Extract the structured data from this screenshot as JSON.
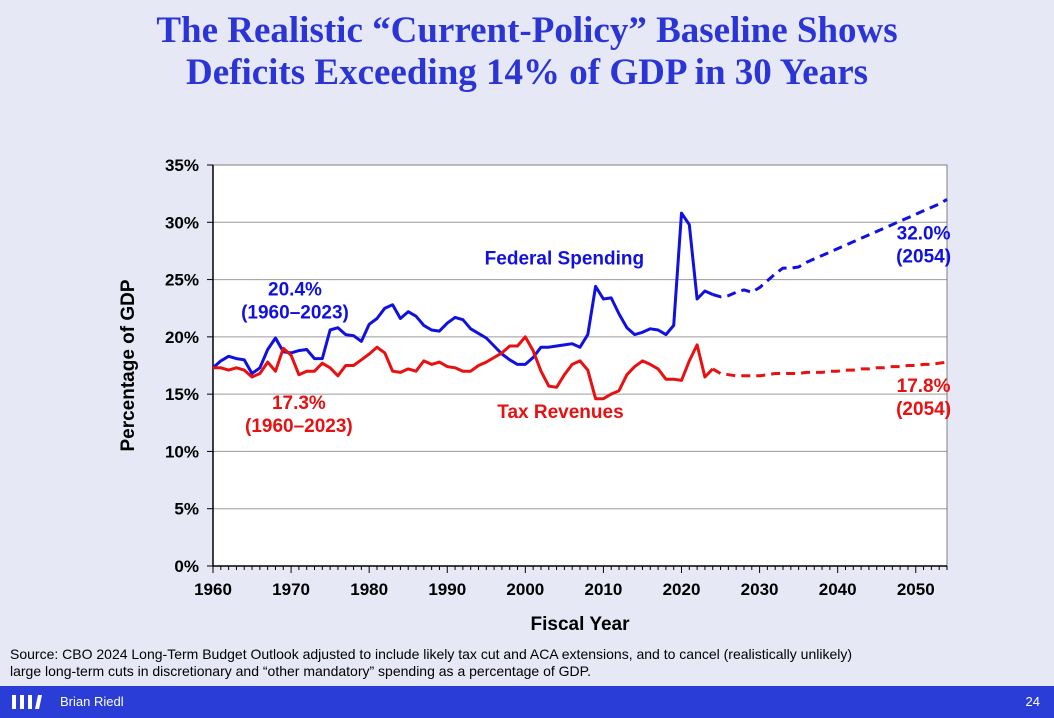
{
  "slide": {
    "title_line1": "The Realistic “Current-Policy” Baseline Shows",
    "title_line2": "Deficits Exceeding 14% of GDP in 30 Years",
    "source_line1": "Source: CBO 2024 Long-Term Budget Outlook adjusted to include likely tax cut and ACA extensions, and to cancel (realistically unlikely)",
    "source_line2": "large long-term cuts in discretionary and “other mandatory” spending as a percentage of GDP.",
    "author": "Brian Riedl",
    "page_number": "24"
  },
  "colors": {
    "title": "#2b35d6",
    "spending": "#1010e0",
    "revenues": "#e81010",
    "footer_bar": "#2a3dd6",
    "background": "#e6e8f5"
  },
  "chart_data": {
    "type": "line",
    "xlabel": "Fiscal Year",
    "ylabel": "Percentage of GDP",
    "xlim": [
      1960,
      2054
    ],
    "ylim": [
      0,
      35
    ],
    "x_ticks": [
      1960,
      1970,
      1980,
      1990,
      2000,
      2010,
      2020,
      2030,
      2040,
      2050
    ],
    "y_ticks": [
      0,
      5,
      10,
      15,
      20,
      25,
      30,
      35
    ],
    "y_tick_labels": [
      "0%",
      "5%",
      "10%",
      "15%",
      "20%",
      "25%",
      "30%",
      "35%"
    ],
    "grid": true,
    "series": [
      {
        "name": "Federal Spending",
        "color": "#1010e0",
        "x": [
          1960,
          1961,
          1962,
          1963,
          1964,
          1965,
          1966,
          1967,
          1968,
          1969,
          1970,
          1971,
          1972,
          1973,
          1974,
          1975,
          1976,
          1977,
          1978,
          1979,
          1980,
          1981,
          1982,
          1983,
          1984,
          1985,
          1986,
          1987,
          1988,
          1989,
          1990,
          1991,
          1992,
          1993,
          1994,
          1995,
          1996,
          1997,
          1998,
          1999,
          2000,
          2001,
          2002,
          2003,
          2004,
          2005,
          2006,
          2007,
          2008,
          2009,
          2010,
          2011,
          2012,
          2013,
          2014,
          2015,
          2016,
          2017,
          2018,
          2019,
          2020,
          2021,
          2022,
          2023,
          2024
        ],
        "y": [
          17.3,
          17.9,
          18.3,
          18.1,
          18.0,
          16.8,
          17.3,
          18.9,
          19.9,
          18.7,
          18.6,
          18.8,
          18.9,
          18.1,
          18.1,
          20.6,
          20.8,
          20.2,
          20.1,
          19.6,
          21.1,
          21.6,
          22.5,
          22.8,
          21.6,
          22.2,
          21.8,
          21.0,
          20.6,
          20.5,
          21.2,
          21.7,
          21.5,
          20.7,
          20.3,
          19.9,
          19.2,
          18.5,
          18.0,
          17.6,
          17.6,
          18.2,
          19.1,
          19.1,
          19.2,
          19.3,
          19.4,
          19.1,
          20.2,
          24.4,
          23.3,
          23.4,
          22.0,
          20.8,
          20.2,
          20.4,
          20.7,
          20.6,
          20.2,
          21.0,
          30.8,
          29.8,
          23.3,
          24.0,
          23.7
        ]
      },
      {
        "name": "Tax Revenues",
        "color": "#e81010",
        "x": [
          1960,
          1961,
          1962,
          1963,
          1964,
          1965,
          1966,
          1967,
          1968,
          1969,
          1970,
          1971,
          1972,
          1973,
          1974,
          1975,
          1976,
          1977,
          1978,
          1979,
          1980,
          1981,
          1982,
          1983,
          1984,
          1985,
          1986,
          1987,
          1988,
          1989,
          1990,
          1991,
          1992,
          1993,
          1994,
          1995,
          1996,
          1997,
          1998,
          1999,
          2000,
          2001,
          2002,
          2003,
          2004,
          2005,
          2006,
          2007,
          2008,
          2009,
          2010,
          2011,
          2012,
          2013,
          2014,
          2015,
          2016,
          2017,
          2018,
          2019,
          2020,
          2021,
          2022,
          2023,
          2024
        ],
        "y": [
          17.3,
          17.3,
          17.1,
          17.3,
          17.1,
          16.5,
          16.8,
          17.8,
          17.0,
          19.0,
          18.4,
          16.7,
          17.0,
          17.0,
          17.7,
          17.3,
          16.6,
          17.5,
          17.5,
          18.0,
          18.5,
          19.1,
          18.6,
          17.0,
          16.9,
          17.2,
          17.0,
          17.9,
          17.6,
          17.8,
          17.4,
          17.3,
          17.0,
          17.0,
          17.5,
          17.8,
          18.2,
          18.6,
          19.2,
          19.2,
          20.0,
          18.8,
          17.0,
          15.7,
          15.6,
          16.7,
          17.6,
          17.9,
          17.1,
          14.6,
          14.6,
          15.0,
          15.3,
          16.7,
          17.4,
          17.9,
          17.6,
          17.2,
          16.3,
          16.3,
          16.2,
          17.9,
          19.3,
          16.5,
          17.2
        ]
      },
      {
        "name": "",
        "color": "#1010e0",
        "dashed": true,
        "x": [
          2024,
          2025,
          2026,
          2027,
          2028,
          2029,
          2030,
          2031,
          2032,
          2033,
          2034,
          2035,
          2036,
          2037,
          2038,
          2039,
          2040,
          2041,
          2042,
          2043,
          2044,
          2045,
          2046,
          2047,
          2048,
          2049,
          2050,
          2051,
          2052,
          2053,
          2054
        ],
        "y": [
          23.7,
          23.5,
          23.6,
          23.9,
          24.1,
          23.9,
          24.3,
          24.9,
          25.5,
          26.0,
          26.0,
          26.1,
          26.5,
          26.8,
          27.1,
          27.4,
          27.7,
          28.0,
          28.3,
          28.6,
          28.9,
          29.2,
          29.5,
          29.8,
          30.1,
          30.4,
          30.7,
          31.0,
          31.3,
          31.6,
          32.0
        ]
      },
      {
        "name": "",
        "color": "#e81010",
        "dashed": true,
        "x": [
          2024,
          2025,
          2026,
          2027,
          2028,
          2029,
          2030,
          2031,
          2032,
          2033,
          2034,
          2035,
          2036,
          2037,
          2038,
          2039,
          2040,
          2041,
          2042,
          2043,
          2044,
          2045,
          2046,
          2047,
          2048,
          2049,
          2050,
          2051,
          2052,
          2053,
          2054
        ],
        "y": [
          17.2,
          16.8,
          16.7,
          16.6,
          16.6,
          16.6,
          16.6,
          16.7,
          16.8,
          16.8,
          16.8,
          16.8,
          16.9,
          16.9,
          16.9,
          17.0,
          17.0,
          17.1,
          17.1,
          17.2,
          17.2,
          17.3,
          17.3,
          17.4,
          17.4,
          17.5,
          17.5,
          17.6,
          17.6,
          17.7,
          17.8
        ]
      }
    ],
    "annotations": [
      {
        "id": "spend-name",
        "text": "Federal Spending",
        "color": "#1010e0",
        "x": 2005,
        "y": 26.3
      },
      {
        "id": "spend-avg-value",
        "text": "20.4%",
        "color": "#1010e0",
        "x": 1970.5,
        "y": 23.6
      },
      {
        "id": "spend-avg-period",
        "text": "(1960–2023)",
        "color": "#1010e0",
        "x": 1970.5,
        "y": 21.6
      },
      {
        "id": "spend-end-value",
        "text": "32.0%",
        "color": "#1010e0",
        "x": 2051,
        "y": 28.5
      },
      {
        "id": "spend-end-year",
        "text": "(2054)",
        "color": "#1010e0",
        "x": 2051,
        "y": 26.5
      },
      {
        "id": "rev-name",
        "text": "Tax Revenues",
        "color": "#e81010",
        "x": 2004.5,
        "y": 12.9
      },
      {
        "id": "rev-avg-value",
        "text": "17.3%",
        "color": "#e81010",
        "x": 1971,
        "y": 13.7
      },
      {
        "id": "rev-avg-period",
        "text": "(1960–2023)",
        "color": "#e81010",
        "x": 1971,
        "y": 11.7
      },
      {
        "id": "rev-end-value",
        "text": "17.8%",
        "color": "#e81010",
        "x": 2051,
        "y": 15.2
      },
      {
        "id": "rev-end-year",
        "text": "(2054)",
        "color": "#e81010",
        "x": 2051,
        "y": 13.2
      }
    ]
  }
}
